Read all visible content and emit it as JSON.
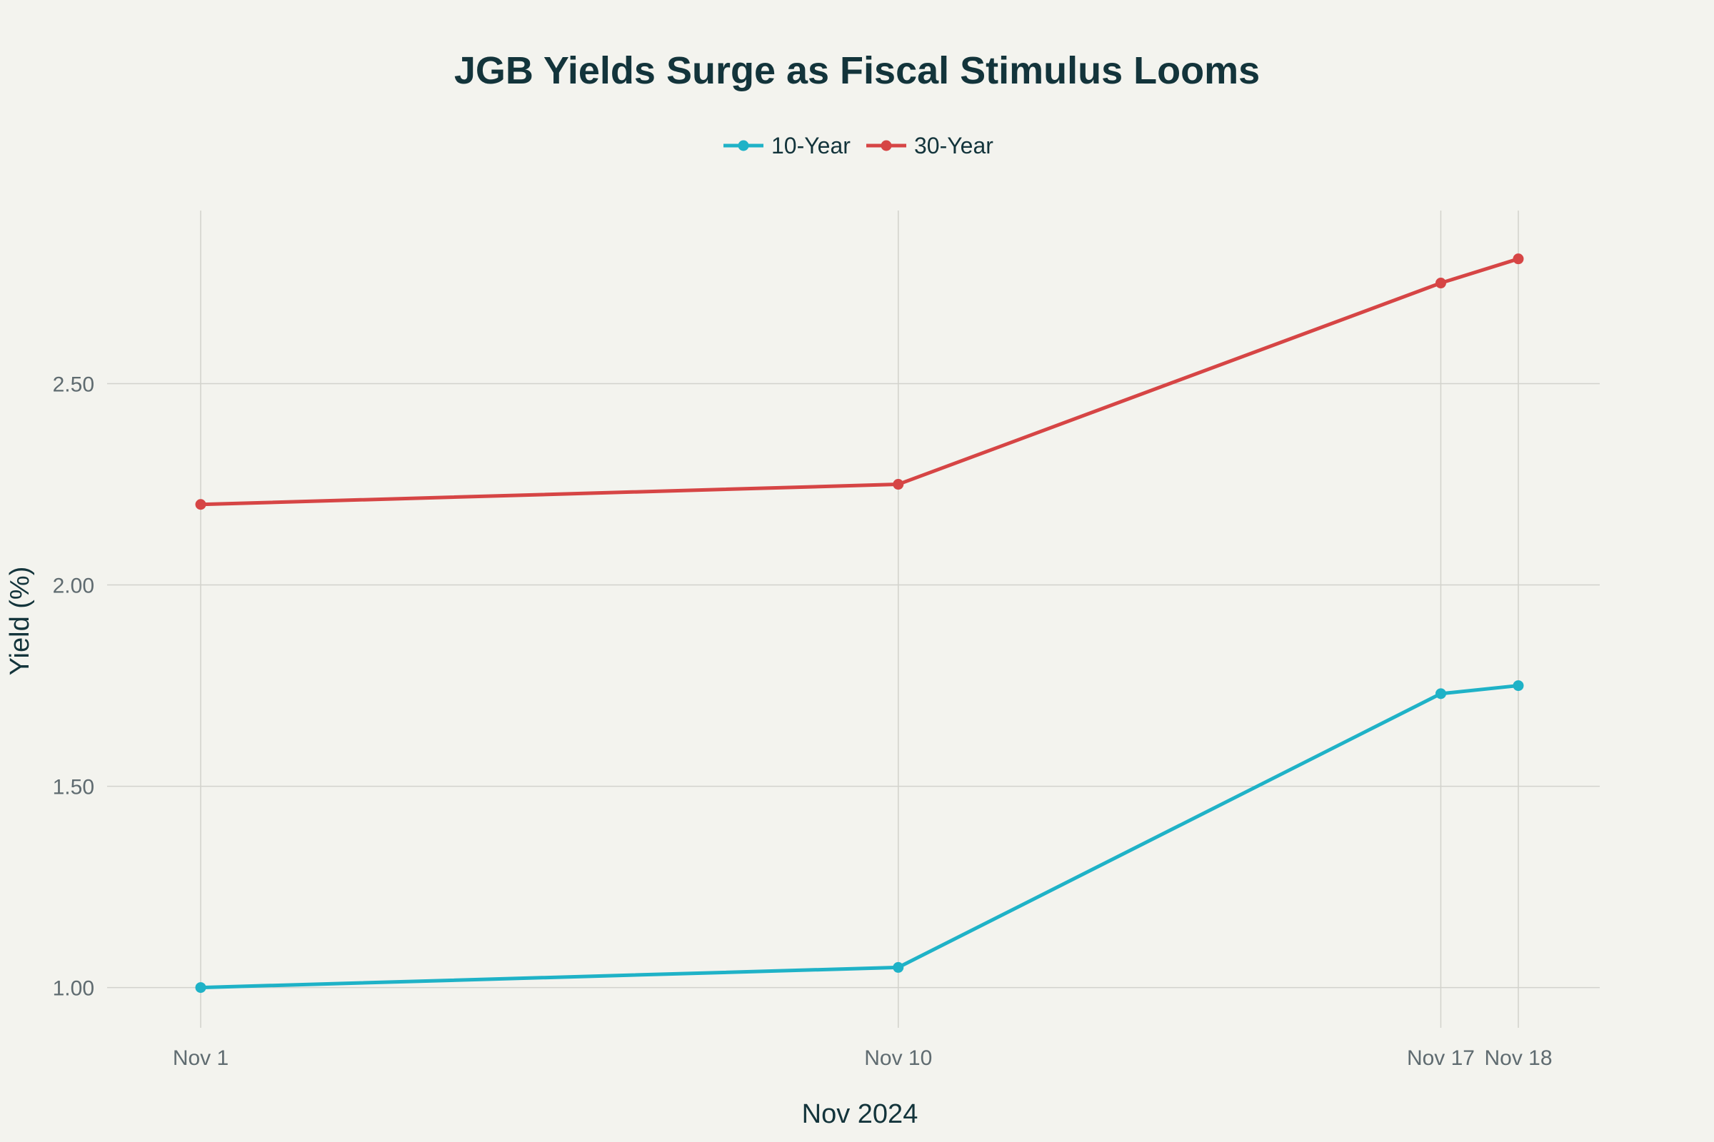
{
  "chart_data": {
    "type": "line",
    "title": "JGB Yields Surge as Fiscal Stimulus Looms",
    "xlabel": "Nov 2024",
    "ylabel": "Yield (%)",
    "categories": [
      "Nov 1",
      "Nov 10",
      "Nov 17",
      "Nov 18"
    ],
    "x_day": [
      1,
      10,
      17,
      18
    ],
    "ylim": [
      0.9,
      2.93
    ],
    "yticks": [
      1.0,
      1.5,
      2.0,
      2.5
    ],
    "ytick_labels": [
      "1.00",
      "1.50",
      "2.00",
      "2.50"
    ],
    "grid": true,
    "legend_position": "top-center",
    "series": [
      {
        "name": "10-Year",
        "color": "#1fb2c7",
        "values": [
          1.0,
          1.05,
          1.73,
          1.75
        ]
      },
      {
        "name": "30-Year",
        "color": "#d64545",
        "values": [
          2.2,
          2.25,
          2.75,
          2.81
        ]
      }
    ]
  }
}
